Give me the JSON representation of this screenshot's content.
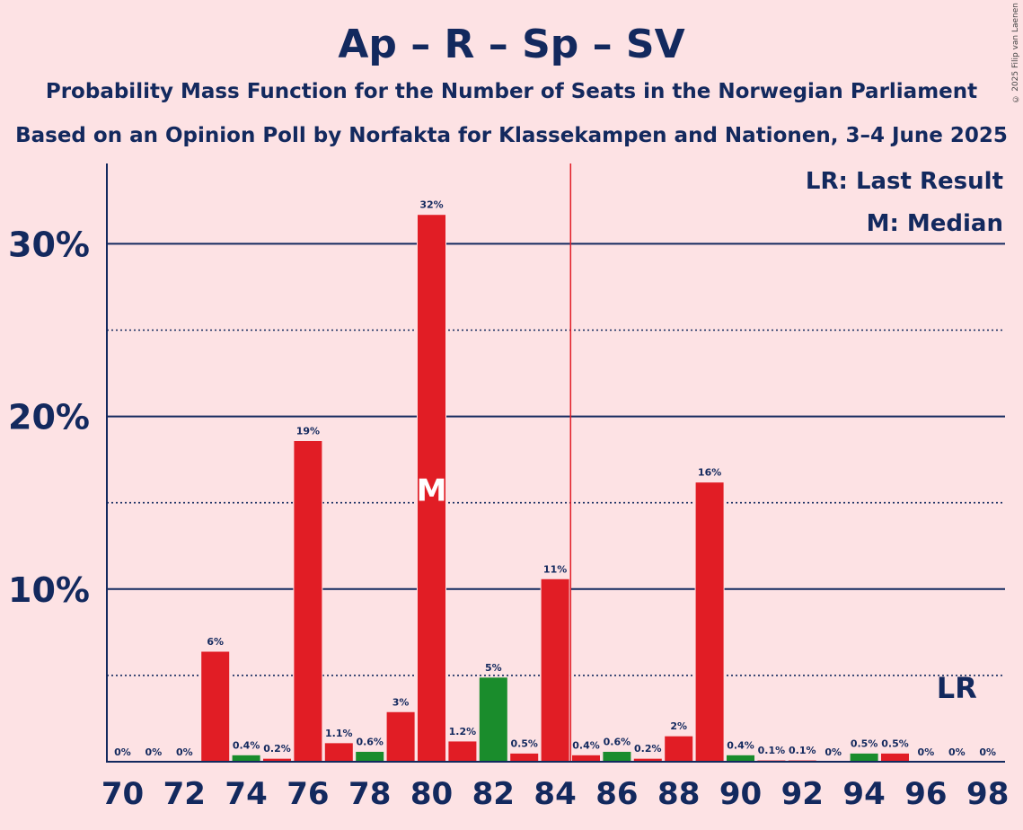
{
  "header": {
    "title": "Ap – R – Sp – SV",
    "subtitle1": "Probability Mass Function for the Number of Seats in the Norwegian Parliament",
    "subtitle2": "Based on an Opinion Poll by Norfakta for Klassekampen and Nationen, 3–4 June 2025",
    "copyright": "© 2025 Filip van Laenen"
  },
  "colors": {
    "background": "#fde2e4",
    "text": "#13295e",
    "red": "#e11d25",
    "green": "#1a8c2c",
    "median_line": "#e11d25"
  },
  "chart_data": {
    "type": "bar",
    "x": [
      70,
      71,
      72,
      73,
      74,
      75,
      76,
      77,
      78,
      79,
      80,
      81,
      82,
      83,
      84,
      85,
      86,
      87,
      88,
      89,
      90,
      91,
      92,
      93,
      94,
      95,
      96,
      97,
      98
    ],
    "values": [
      0,
      0,
      0,
      6.4,
      0.4,
      0.2,
      18.6,
      1.1,
      0.6,
      2.9,
      31.7,
      1.2,
      4.9,
      0.5,
      10.6,
      0.4,
      0.6,
      0.2,
      1.5,
      16.2,
      0.4,
      0.1,
      0.1,
      0,
      0.5,
      0.5,
      0,
      0,
      0
    ],
    "labels": [
      "0%",
      "0%",
      "0%",
      "6%",
      "0.4%",
      "0.2%",
      "19%",
      "1.1%",
      "0.6%",
      "3%",
      "32%",
      "1.2%",
      "5%",
      "0.5%",
      "11%",
      "0.4%",
      "0.6%",
      "0.2%",
      "2%",
      "16%",
      "0.4%",
      "0.1%",
      "0.1%",
      "0%",
      "0.5%",
      "0.5%",
      "0%",
      "0%",
      "0%"
    ],
    "bar_colors": [
      "red",
      "red",
      "red",
      "red",
      "green",
      "red",
      "red",
      "red",
      "green",
      "red",
      "red",
      "red",
      "green",
      "red",
      "red",
      "red",
      "green",
      "red",
      "red",
      "red",
      "green",
      "red",
      "red",
      "red",
      "green",
      "red",
      "red",
      "red",
      "red"
    ],
    "x_tick_labels": [
      "70",
      "72",
      "74",
      "76",
      "78",
      "80",
      "82",
      "84",
      "86",
      "88",
      "90",
      "92",
      "94",
      "96",
      "98"
    ],
    "y_tick_labels": [
      "10%",
      "20%",
      "30%"
    ],
    "ylim": [
      0,
      34.5
    ],
    "major_gridlines": [
      10,
      20,
      30
    ],
    "minor_gridlines": [
      5,
      15,
      25
    ],
    "median": 80,
    "median_marker": "M",
    "last_result": 97,
    "last_result_marker": "LR",
    "majority_line_after": 84,
    "legend": {
      "lr": "LR: Last Result",
      "m": "M: Median"
    }
  }
}
